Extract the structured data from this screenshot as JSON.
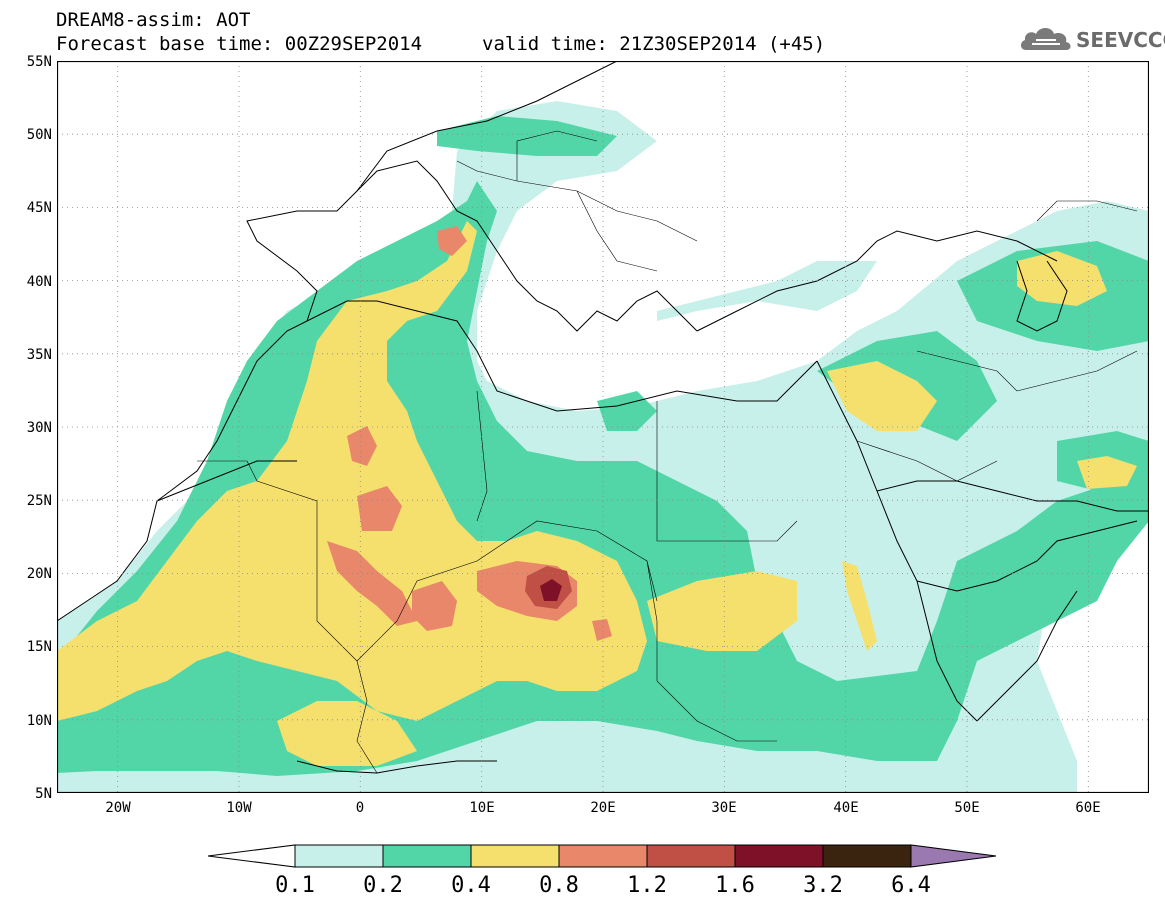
{
  "header": {
    "line1": "DREAM8-assim: AOT",
    "line2": "Forecast base time: 00Z29SEP2014",
    "valid": "valid time: 21Z30SEP2014 (+45)"
  },
  "logo": {
    "text": "SEEVCCC",
    "icon": "cloud-icon"
  },
  "map": {
    "lat_ticks": [
      "55N",
      "50N",
      "45N",
      "40N",
      "35N",
      "30N",
      "25N",
      "20N",
      "15N",
      "10N",
      "5N"
    ],
    "lon_ticks": [
      "20W",
      "10W",
      "0",
      "10E",
      "20E",
      "30E",
      "40E",
      "50E",
      "60E"
    ],
    "lat_range": [
      5,
      55
    ],
    "lon_range": [
      -25,
      65
    ],
    "grid": true
  },
  "colorbar": {
    "levels": [
      "0.1",
      "0.2",
      "0.4",
      "0.8",
      "1.2",
      "1.6",
      "3.2",
      "6.4"
    ],
    "colors": {
      "c1": "#c8f0ea",
      "c2": "#52d6a8",
      "c3": "#f5e06e",
      "c4": "#e8876a",
      "c5": "#c05046",
      "c6": "#7e1028",
      "c7": "#3a2410",
      "c8": "#9a78b0",
      "c0": "#ffffff"
    }
  }
}
